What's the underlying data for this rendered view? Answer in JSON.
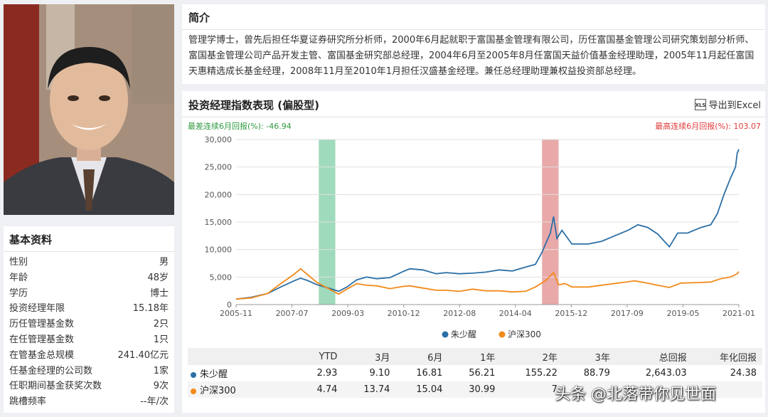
{
  "basic": {
    "title": "基本资料",
    "rows": [
      {
        "label": "性别",
        "value": "男"
      },
      {
        "label": "年龄",
        "value": "48岁"
      },
      {
        "label": "学历",
        "value": "博士"
      },
      {
        "label": "投资经理年限",
        "value": "15.18年"
      },
      {
        "label": "历任管理基金数",
        "value": "2只"
      },
      {
        "label": "在任管理基金数",
        "value": "1只"
      },
      {
        "label": "在管基金总规模",
        "value": "241.40亿元"
      },
      {
        "label": "任基金经理的公司数",
        "value": "1家"
      },
      {
        "label": "任职期间基金获奖次数",
        "value": "9次"
      },
      {
        "label": "跳槽频率",
        "value": "--年/次"
      }
    ]
  },
  "intro": {
    "title": "简介",
    "text": "管理学博士，曾先后担任华夏证券研究所分析师，2000年6月起就职于富国基金管理有限公司，历任富国基金管理公司研究策划部分析师、富国基金管理公司产品开发主管、富国基金研究部总经理，2004年6月至2005年8月任富国天益价值基金经理助理，2005年11月起任富国天惠精选成长基金经理，2008年11月至2010年1月担任汉盛基金经理。兼任总经理助理兼权益投资部总经理。"
  },
  "perf": {
    "title": "投资经理指数表现 (偏股型)",
    "export_label": "导出到Excel",
    "export_icon": "xls-icon",
    "worst_label": "最差连续6月回报(%): -46.94",
    "best_label": "最高连续6月回报(%): 103.07"
  },
  "chart_data": {
    "type": "line",
    "x_ticks": [
      "2005-11",
      "2007-07",
      "2009-03",
      "2010-12",
      "2012-08",
      "2014-04",
      "2015-12",
      "2017-09",
      "2019-05",
      "2021-01"
    ],
    "ylim": [
      0,
      30000
    ],
    "y_ticks": [
      "0",
      "5,000",
      "10,000",
      "15,000",
      "20,000",
      "25,000",
      "30,000"
    ],
    "grid": true,
    "legend_position": "bottom",
    "highlight_worst_color": "#8fd3b0",
    "highlight_best_color": "#e59a9a",
    "highlight_worst_x": [
      2008.35,
      2008.85
    ],
    "highlight_best_x": [
      2015.1,
      2015.6
    ],
    "series": [
      {
        "name": "朱少醒",
        "color": "#2b6fa6",
        "points": [
          [
            2005.85,
            1000
          ],
          [
            2006.3,
            1300
          ],
          [
            2006.8,
            2000
          ],
          [
            2007.2,
            3200
          ],
          [
            2007.6,
            4300
          ],
          [
            2007.8,
            4800
          ],
          [
            2008.0,
            4400
          ],
          [
            2008.3,
            3600
          ],
          [
            2008.7,
            2900
          ],
          [
            2008.95,
            2400
          ],
          [
            2009.2,
            3200
          ],
          [
            2009.5,
            4500
          ],
          [
            2009.8,
            5000
          ],
          [
            2010.1,
            4700
          ],
          [
            2010.5,
            4900
          ],
          [
            2010.9,
            6000
          ],
          [
            2011.1,
            6500
          ],
          [
            2011.5,
            6300
          ],
          [
            2011.9,
            5600
          ],
          [
            2012.2,
            5800
          ],
          [
            2012.6,
            5600
          ],
          [
            2013.0,
            5700
          ],
          [
            2013.4,
            5900
          ],
          [
            2013.8,
            6300
          ],
          [
            2014.2,
            6100
          ],
          [
            2014.6,
            6800
          ],
          [
            2014.9,
            7300
          ],
          [
            2015.1,
            9500
          ],
          [
            2015.35,
            13000
          ],
          [
            2015.45,
            16000
          ],
          [
            2015.55,
            12000
          ],
          [
            2015.7,
            13500
          ],
          [
            2016.0,
            11000
          ],
          [
            2016.5,
            11000
          ],
          [
            2016.9,
            11500
          ],
          [
            2017.3,
            12500
          ],
          [
            2017.7,
            13500
          ],
          [
            2018.0,
            14500
          ],
          [
            2018.3,
            14000
          ],
          [
            2018.6,
            12800
          ],
          [
            2018.95,
            10500
          ],
          [
            2019.2,
            13000
          ],
          [
            2019.5,
            13000
          ],
          [
            2019.9,
            14000
          ],
          [
            2020.2,
            14500
          ],
          [
            2020.4,
            16500
          ],
          [
            2020.6,
            20000
          ],
          [
            2020.8,
            23000
          ],
          [
            2020.95,
            25000
          ],
          [
            2021.0,
            27500
          ],
          [
            2021.05,
            28200
          ]
        ]
      },
      {
        "name": "沪深300",
        "color": "#f28a1b",
        "points": [
          [
            2005.85,
            1000
          ],
          [
            2006.3,
            1200
          ],
          [
            2006.8,
            2000
          ],
          [
            2007.2,
            3800
          ],
          [
            2007.6,
            5500
          ],
          [
            2007.8,
            6500
          ],
          [
            2008.0,
            5500
          ],
          [
            2008.3,
            4000
          ],
          [
            2008.7,
            2700
          ],
          [
            2008.95,
            1900
          ],
          [
            2009.2,
            2800
          ],
          [
            2009.5,
            3800
          ],
          [
            2009.8,
            3500
          ],
          [
            2010.1,
            3400
          ],
          [
            2010.5,
            2900
          ],
          [
            2010.9,
            3300
          ],
          [
            2011.1,
            3400
          ],
          [
            2011.5,
            3000
          ],
          [
            2011.9,
            2600
          ],
          [
            2012.2,
            2600
          ],
          [
            2012.6,
            2400
          ],
          [
            2013.0,
            2800
          ],
          [
            2013.4,
            2500
          ],
          [
            2013.8,
            2500
          ],
          [
            2014.2,
            2300
          ],
          [
            2014.6,
            2400
          ],
          [
            2014.9,
            3200
          ],
          [
            2015.2,
            4300
          ],
          [
            2015.45,
            5800
          ],
          [
            2015.6,
            3600
          ],
          [
            2015.8,
            3800
          ],
          [
            2016.0,
            3200
          ],
          [
            2016.5,
            3200
          ],
          [
            2017.0,
            3600
          ],
          [
            2017.5,
            4000
          ],
          [
            2017.9,
            4300
          ],
          [
            2018.2,
            4000
          ],
          [
            2018.6,
            3500
          ],
          [
            2018.95,
            3100
          ],
          [
            2019.3,
            3900
          ],
          [
            2019.8,
            4000
          ],
          [
            2020.2,
            4100
          ],
          [
            2020.5,
            4700
          ],
          [
            2020.8,
            5000
          ],
          [
            2021.0,
            5600
          ],
          [
            2021.05,
            6000
          ]
        ]
      }
    ]
  },
  "table": {
    "headers": [
      "",
      "YTD",
      "3月",
      "6月",
      "1年",
      "2年",
      "3年",
      "总回报",
      "年化回报"
    ],
    "rows": [
      {
        "name": "朱少醒",
        "color": "#2b6fa6",
        "values": [
          "2.93",
          "9.10",
          "16.81",
          "56.21",
          "155.22",
          "88.79",
          "2,643.03",
          "24.38"
        ]
      },
      {
        "name": "沪深300",
        "color": "#f28a1b",
        "values": [
          "4.74",
          "13.74",
          "15.04",
          "30.99",
          "7",
          "",
          "",
          ""
        ]
      }
    ]
  },
  "watermark": "头条 @北落带你见世面"
}
